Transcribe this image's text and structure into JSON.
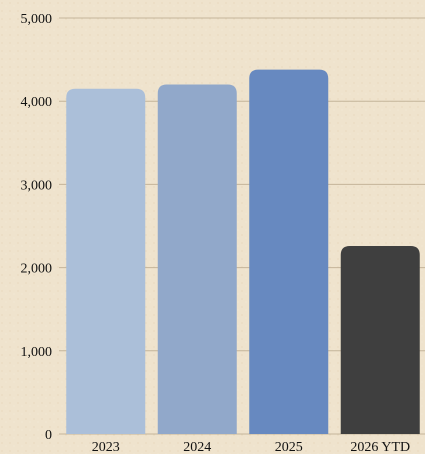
{
  "chart_data": {
    "type": "bar",
    "categories": [
      "2023",
      "2024",
      "2025",
      "2026 YTD"
    ],
    "values": [
      4150,
      4200,
      4380,
      2260
    ],
    "ylim": [
      0,
      5000
    ],
    "yticks": [
      0,
      1000,
      2000,
      3000,
      4000,
      5000
    ],
    "ytick_labels": [
      "0",
      "1,000",
      "2,000",
      "3,000",
      "4,000",
      "5,000"
    ],
    "bar_colors": [
      "#abbfd9",
      "#91a8ca",
      "#6789c0",
      "#3f3f3f"
    ],
    "grid": true,
    "grid_color": "#c4b49a",
    "background_color": "#efe3cd",
    "title": "",
    "xlabel": "",
    "ylabel": ""
  }
}
